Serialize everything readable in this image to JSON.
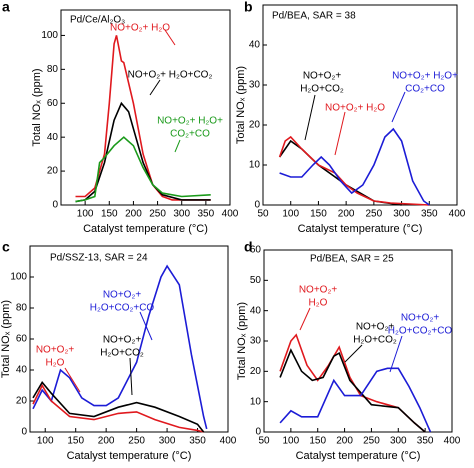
{
  "chart_data": [
    {
      "type": "line",
      "panel_label": "a",
      "title": "Pd/Ce/Al₂O₃",
      "x_label": "Catalyst temperature (°C)",
      "y_label": "Total NOₓ (ppm)",
      "xlim": [
        50,
        400
      ],
      "ylim": [
        0,
        115
      ],
      "xticks": [
        100,
        150,
        200,
        250,
        300,
        350,
        400
      ],
      "yticks": [
        0,
        20,
        40,
        60,
        80,
        100
      ],
      "series": [
        {
          "name": [
            "NO+O₂+ H₂O"
          ],
          "color": "#e0191e",
          "x": [
            80,
            100,
            120,
            140,
            150,
            160,
            165,
            175,
            180,
            200,
            220,
            240,
            260,
            280,
            300,
            360
          ],
          "values": [
            5,
            5,
            10,
            30,
            60,
            95,
            100,
            85,
            84,
            60,
            30,
            12,
            5,
            3,
            3,
            3
          ]
        },
        {
          "name": [
            "NO+O₂+ H₂O+CO₂"
          ],
          "color": "#000000",
          "x": [
            80,
            100,
            120,
            140,
            160,
            175,
            190,
            200,
            220,
            240,
            260,
            300,
            360
          ],
          "values": [
            2,
            3,
            8,
            25,
            50,
            60,
            55,
            45,
            25,
            12,
            6,
            3,
            3
          ]
        },
        {
          "name": [
            "NO+O₂+ H₂O+",
            "CO₂+CO"
          ],
          "color": "#1a9a1a",
          "x": [
            80,
            100,
            120,
            125,
            130,
            140,
            160,
            180,
            200,
            220,
            240,
            260,
            300,
            360
          ],
          "values": [
            2,
            3,
            5,
            15,
            25,
            28,
            35,
            40,
            35,
            22,
            12,
            7,
            5,
            6
          ]
        }
      ]
    },
    {
      "type": "line",
      "panel_label": "b",
      "title": "Pd/BEA, SAR = 38",
      "x_label": "Catalyst temperature (°C)",
      "y_label": "Total NOₓ (ppm)",
      "xlim": [
        50,
        400
      ],
      "ylim": [
        0,
        50
      ],
      "xticks": [
        50,
        100,
        150,
        200,
        250,
        300,
        350,
        400
      ],
      "yticks": [
        0,
        10,
        20,
        30,
        40
      ],
      "series": [
        {
          "name": [
            "NO+O₂+",
            "H₂O+CO₂"
          ],
          "color": "#000000",
          "x": [
            80,
            100,
            120,
            150,
            180,
            200,
            250,
            300
          ],
          "values": [
            12,
            16,
            14,
            10,
            7,
            5,
            1,
            0
          ]
        },
        {
          "name": [
            "NO+O₂+ H₂O"
          ],
          "color": "#e0191e",
          "x": [
            80,
            90,
            100,
            120,
            150,
            180,
            200,
            220,
            250,
            280,
            350
          ],
          "values": [
            12,
            16,
            17,
            14,
            10,
            8,
            5,
            3,
            1,
            0.5,
            0
          ]
        },
        {
          "name": [
            "NO+O₂+ H₂O+",
            "CO₂+CO"
          ],
          "color": "#1c1cd6",
          "x": [
            80,
            100,
            120,
            140,
            155,
            170,
            190,
            210,
            230,
            250,
            270,
            285,
            300,
            320,
            340,
            350
          ],
          "values": [
            8,
            7,
            7,
            10,
            12,
            10,
            6,
            3,
            5,
            10,
            17,
            19,
            16,
            6,
            1,
            0
          ]
        }
      ]
    },
    {
      "type": "line",
      "panel_label": "c",
      "title": "Pd/SSZ-13, SAR = 24",
      "x_label": "Catalyst temperature (°C)",
      "y_label": "Total NOₓ (ppm)",
      "xlim": [
        75,
        400
      ],
      "ylim": [
        0,
        120
      ],
      "xticks": [
        100,
        150,
        200,
        250,
        300,
        350,
        400
      ],
      "yticks": [
        0,
        20,
        40,
        60,
        80,
        100
      ],
      "series": [
        {
          "name": [
            "NO+O₂+",
            "H₂O+CO₂+CO"
          ],
          "color": "#1c1cd6",
          "x": [
            80,
            95,
            110,
            125,
            140,
            160,
            180,
            200,
            220,
            250,
            270,
            290,
            300,
            320,
            340,
            360,
            365
          ],
          "values": [
            15,
            27,
            20,
            40,
            35,
            22,
            17,
            17,
            22,
            45,
            75,
            100,
            107,
            95,
            50,
            10,
            2
          ]
        },
        {
          "name": [
            "NO+O₂+",
            "H₂O"
          ],
          "color": "#e0191e",
          "x": [
            80,
            95,
            110,
            140,
            180,
            220,
            250,
            280,
            320,
            350,
            360
          ],
          "values": [
            18,
            30,
            20,
            10,
            8,
            12,
            13,
            8,
            3,
            1,
            0
          ]
        },
        {
          "name": [
            "NO+O₂+",
            "H₂O+CO₂"
          ],
          "color": "#000000",
          "x": [
            80,
            95,
            110,
            140,
            180,
            220,
            250,
            280,
            320,
            350,
            360
          ],
          "values": [
            22,
            32,
            25,
            12,
            10,
            16,
            19,
            16,
            10,
            5,
            0
          ]
        }
      ]
    },
    {
      "type": "line",
      "panel_label": "d",
      "title": "Pd/BEA, SAR = 25",
      "x_label": "Catalyst temperature (°C)",
      "y_label": "Total NOₓ (ppm)",
      "xlim": [
        50,
        400
      ],
      "ylim": [
        0,
        60
      ],
      "xticks": [
        50,
        100,
        150,
        200,
        250,
        300,
        350,
        400
      ],
      "yticks": [
        0,
        10,
        20,
        30,
        40,
        50,
        60
      ],
      "series": [
        {
          "name": [
            "NO+O₂+",
            "H₂O"
          ],
          "color": "#e0191e",
          "x": [
            80,
            100,
            110,
            130,
            150,
            170,
            190,
            210,
            230,
            260,
            300,
            330,
            350
          ],
          "values": [
            20,
            30,
            32,
            22,
            17,
            22,
            28,
            18,
            12,
            10,
            8,
            3,
            0
          ]
        },
        {
          "name": [
            "NO+O₂+",
            "H₂O+CO₂"
          ],
          "color": "#000000",
          "x": [
            80,
            100,
            120,
            140,
            160,
            180,
            190,
            210,
            250,
            300,
            330,
            350
          ],
          "values": [
            18,
            27,
            20,
            17,
            18,
            25,
            26,
            17,
            9,
            8,
            3,
            0
          ]
        },
        {
          "name": [
            "NO+O₂+",
            "H₂O+CO₂+CO"
          ],
          "color": "#1c1cd6",
          "x": [
            80,
            100,
            120,
            150,
            180,
            200,
            230,
            260,
            280,
            300,
            320,
            340,
            355,
            360
          ],
          "values": [
            3,
            7,
            5,
            5,
            17,
            12,
            12,
            20,
            21,
            21,
            15,
            8,
            2,
            0
          ]
        }
      ]
    }
  ]
}
